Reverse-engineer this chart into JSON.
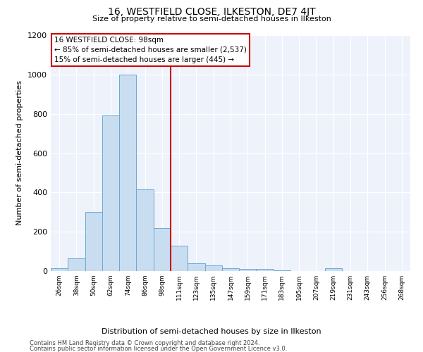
{
  "title": "16, WESTFIELD CLOSE, ILKESTON, DE7 4JT",
  "subtitle": "Size of property relative to semi-detached houses in Ilkeston",
  "xlabel_bottom": "Distribution of semi-detached houses by size in Ilkeston",
  "ylabel": "Number of semi-detached properties",
  "footnote1": "Contains HM Land Registry data © Crown copyright and database right 2024.",
  "footnote2": "Contains public sector information licensed under the Open Government Licence v3.0.",
  "annotation_line1": "16 WESTFIELD CLOSE: 98sqm",
  "annotation_line2": "← 85% of semi-detached houses are smaller (2,537)",
  "annotation_line3": "15% of semi-detached houses are larger (445) →",
  "bar_color": "#c8ddf0",
  "bar_edge_color": "#6aaad4",
  "vline_color": "#cc0000",
  "background_color": "#eef2fb",
  "categories": [
    "26sqm",
    "38sqm",
    "50sqm",
    "62sqm",
    "74sqm",
    "86sqm",
    "98sqm",
    "111sqm",
    "123sqm",
    "135sqm",
    "147sqm",
    "159sqm",
    "171sqm",
    "183sqm",
    "195sqm",
    "207sqm",
    "219sqm",
    "231sqm",
    "243sqm",
    "256sqm",
    "268sqm"
  ],
  "values": [
    15,
    65,
    300,
    790,
    1000,
    415,
    220,
    130,
    40,
    30,
    15,
    10,
    10,
    5,
    0,
    0,
    15,
    0,
    0,
    0,
    0
  ],
  "ylim": [
    0,
    1200
  ],
  "yticks": [
    0,
    200,
    400,
    600,
    800,
    1000,
    1200
  ],
  "prop_idx": 6,
  "title_fontsize": 10,
  "subtitle_fontsize": 8,
  "ylabel_fontsize": 8,
  "xtick_fontsize": 6.5,
  "ytick_fontsize": 8,
  "annot_fontsize": 7.5,
  "xlabel_fontsize": 8,
  "footnote_fontsize": 6
}
